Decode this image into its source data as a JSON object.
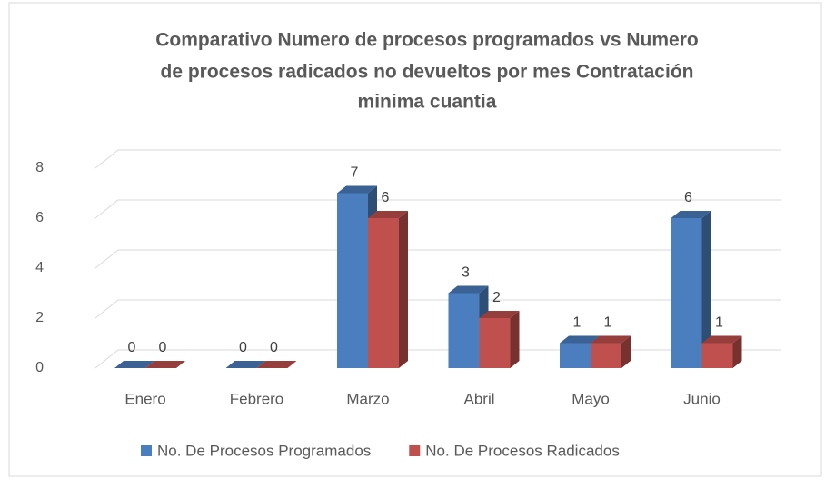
{
  "chart_data": {
    "type": "bar3d",
    "title": [
      "Comparativo Numero de procesos programados vs Numero",
      "de procesos radicados no devueltos por mes Contratación",
      "minima cuantia"
    ],
    "categories": [
      "Enero",
      "Febrero",
      "Marzo",
      "Abril",
      "Mayo",
      "Junio"
    ],
    "series": [
      {
        "name": "No. De Procesos Programados",
        "color": "#4a7ebf",
        "values": [
          0,
          0,
          7,
          3,
          1,
          6
        ]
      },
      {
        "name": "No. De Procesos Radicados",
        "color": "#c0504d",
        "values": [
          0,
          0,
          6,
          2,
          1,
          1
        ]
      }
    ],
    "ylim": [
      0,
      8
    ],
    "yticks": [
      0,
      2,
      4,
      6,
      8
    ],
    "grid": true,
    "legend": "bottom"
  }
}
